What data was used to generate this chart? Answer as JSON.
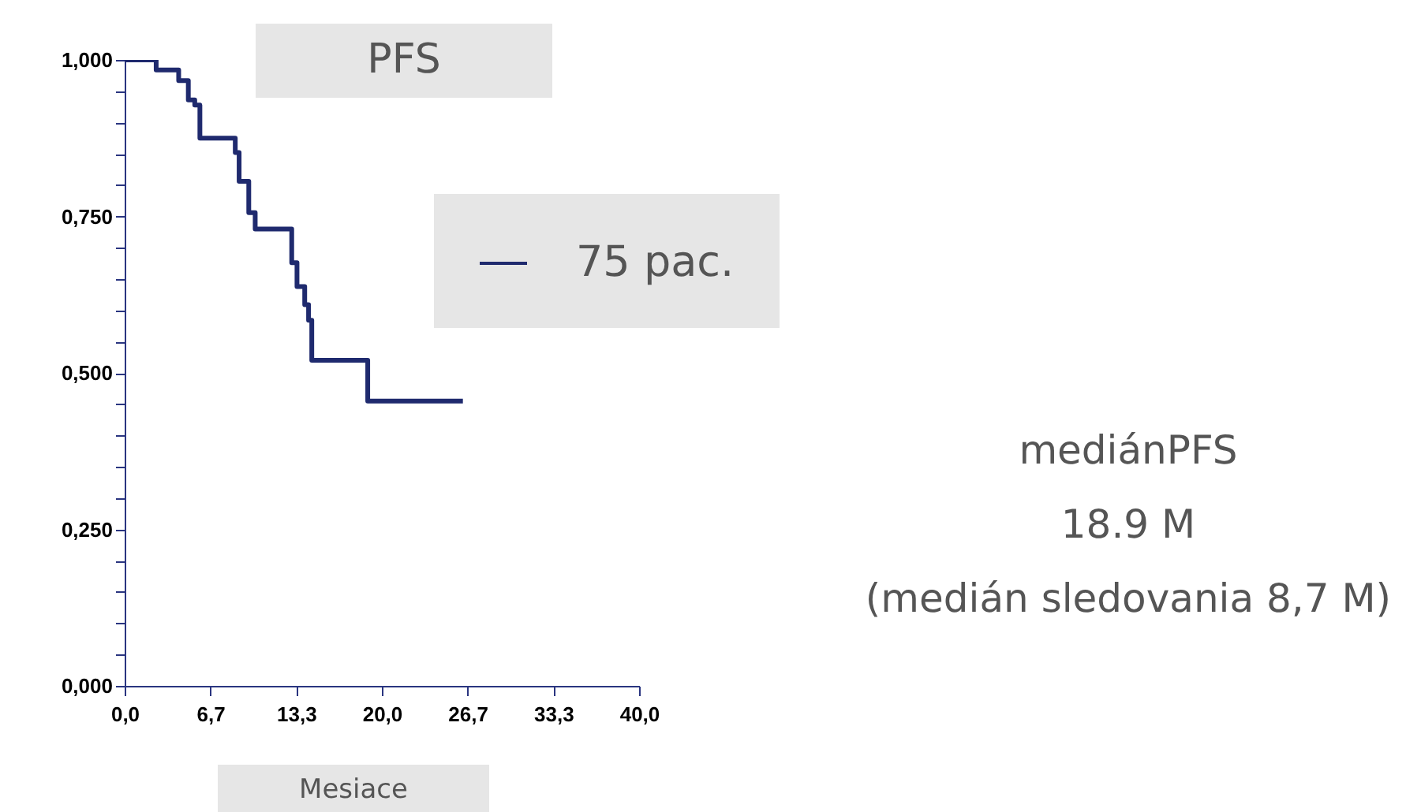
{
  "chart_data": {
    "type": "step",
    "title": "PFS",
    "xlabel": "Mesiace",
    "x": [
      0,
      2.45,
      4.2,
      4.95,
      5.45,
      5.85,
      8.6,
      8.9,
      9.65,
      10.15,
      12.99,
      13.4,
      14.0,
      14.3,
      14.55,
      18.9,
      26.3
    ],
    "series": [
      {
        "name": "75 pac.",
        "color": "#1f2a6e",
        "values": [
          1.0,
          0.984,
          0.967,
          0.936,
          0.928,
          0.875,
          0.852,
          0.806,
          0.756,
          0.73,
          0.676,
          0.638,
          0.609,
          0.584,
          0.52,
          0.455,
          0.455
        ]
      }
    ],
    "xlim": [
      0,
      40
    ],
    "xticks": [
      {
        "value": 0,
        "label": "0,0"
      },
      {
        "value": 6.667,
        "label": "6,7"
      },
      {
        "value": 13.333,
        "label": "13,3"
      },
      {
        "value": 20,
        "label": "20,0"
      },
      {
        "value": 26.667,
        "label": "26,7"
      },
      {
        "value": 33.333,
        "label": "33,3"
      },
      {
        "value": 40,
        "label": "40,0"
      }
    ],
    "ylim": [
      0,
      1
    ],
    "yticks": [
      {
        "value": 0,
        "label": "0,000"
      },
      {
        "value": 0.05,
        "label": null
      },
      {
        "value": 0.1,
        "label": null
      },
      {
        "value": 0.15,
        "label": null
      },
      {
        "value": 0.2,
        "label": null
      },
      {
        "value": 0.25,
        "label": "0,250"
      },
      {
        "value": 0.3,
        "label": null
      },
      {
        "value": 0.35,
        "label": null
      },
      {
        "value": 0.4,
        "label": null
      },
      {
        "value": 0.45,
        "label": null
      },
      {
        "value": 0.5,
        "label": "0,500"
      },
      {
        "value": 0.55,
        "label": null
      },
      {
        "value": 0.6,
        "label": null
      },
      {
        "value": 0.65,
        "label": null
      },
      {
        "value": 0.7,
        "label": null
      },
      {
        "value": 0.75,
        "label": "0,750"
      },
      {
        "value": 0.8,
        "label": null
      },
      {
        "value": 0.85,
        "label": null
      },
      {
        "value": 0.9,
        "label": null
      },
      {
        "value": 0.95,
        "label": null
      },
      {
        "value": 1,
        "label": "1,000"
      }
    ],
    "legend": "right",
    "annotations": [
      "mediánPFS",
      "18.9 M",
      "(medián  sledovania 8,7 M)"
    ]
  }
}
